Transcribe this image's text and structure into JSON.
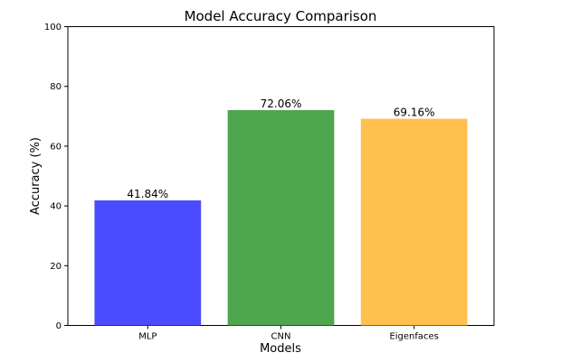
{
  "chart_data": {
    "type": "bar",
    "title": "Model Accuracy Comparison",
    "xlabel": "Models",
    "ylabel": "Accuracy (%)",
    "categories": [
      "MLP",
      "CNN",
      "Eigenfaces"
    ],
    "values": [
      41.84,
      72.06,
      69.16
    ],
    "value_labels": [
      "41.84%",
      "72.06%",
      "69.16%"
    ],
    "colors": [
      "#4b4bff",
      "#4ea64e",
      "#ffc04e"
    ],
    "ylim": [
      0,
      100
    ],
    "yticks": [
      0,
      20,
      40,
      60,
      80,
      100
    ],
    "grid": false,
    "legend": "none"
  }
}
